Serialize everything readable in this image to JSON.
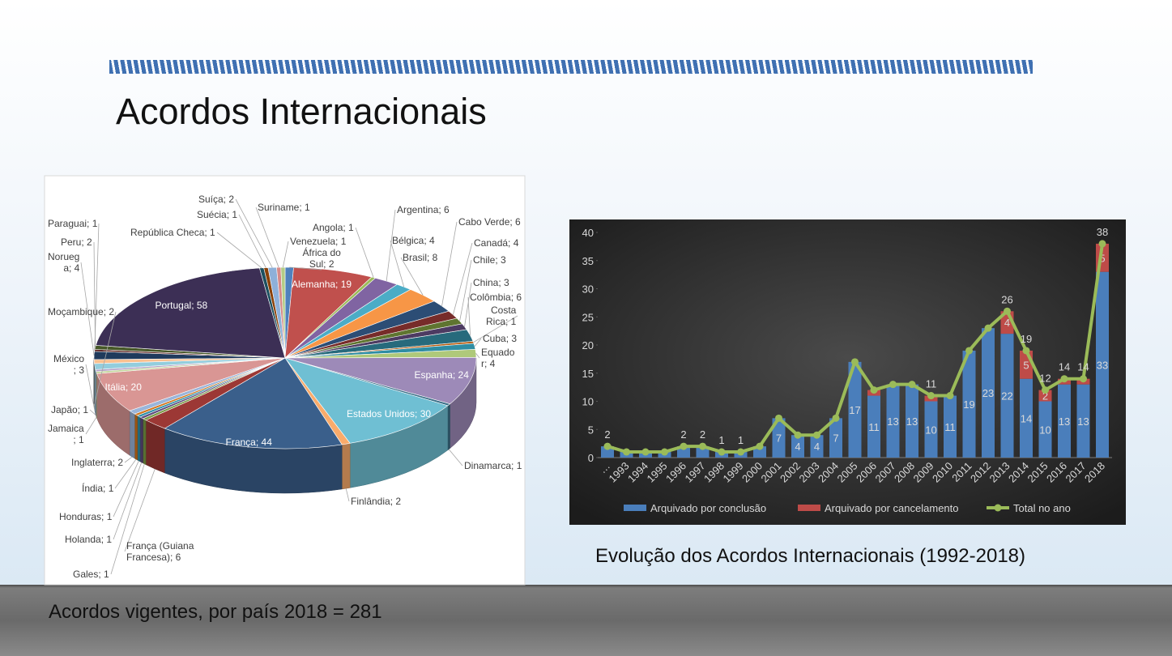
{
  "title": "Acordos Internacionais",
  "chart_data": [
    {
      "type": "pie",
      "caption": "Acordos vigentes, por país 2018 = 281",
      "values": [
        2,
        19,
        1,
        6,
        4,
        8,
        6,
        4,
        3,
        3,
        6,
        1,
        3,
        4,
        24,
        1,
        30,
        2,
        44,
        6,
        1,
        1,
        1,
        1,
        2,
        20,
        1,
        1,
        3,
        2,
        4,
        1,
        2,
        58,
        1,
        1,
        2,
        1,
        1
      ],
      "value_labels": [
        "África do\nSul; 2",
        "Alemanha; 19",
        "Angola; 1",
        "Argentina; 6",
        "Bélgica; 4",
        "Brasil; 8",
        "Cabo Verde; 6",
        "Canadá; 4",
        "Chile; 3",
        "China; 3",
        "Colômbia; 6",
        "Costa\nRica; 1",
        "Cuba; 3",
        "Equado\nr; 4",
        "Espanha; 24",
        "Dinamarca; 1",
        "Estados Unidos; 30",
        "Finlândia; 2",
        "França; 44",
        "França (Guiana\nFrancesa); 6",
        "Gales; 1",
        "Holanda; 1",
        "Honduras; 1",
        "Índia; 1",
        "Inglaterra; 2",
        "Itália; 20",
        "Jamaica\n; 1",
        "Japão; 1",
        "México\n; 3",
        "Moçambique; 2",
        "Norueg\na; 4",
        "Paraguai; 1",
        "Peru; 2",
        "Portugal; 58",
        "República Checa; 1",
        "Suécia; 1",
        "Suíça; 2",
        "Suriname; 1",
        "Venezuela; 1"
      ],
      "colors": [
        "#4f81bd",
        "#c0504d",
        "#9bbb59",
        "#8064a2",
        "#4bacc6",
        "#f79646",
        "#2c4d75",
        "#772c2a",
        "#5f7530",
        "#4d3b62",
        "#276a7c",
        "#b65708",
        "#2f8da3",
        "#afc97a",
        "#9d8ab8",
        "#3a6f88",
        "#6fbfd3",
        "#f9ab6b",
        "#3a5f8b",
        "#9c3835",
        "#7a9a44",
        "#5e4a7d",
        "#3190aa",
        "#d3751a",
        "#9ab5da",
        "#d99694",
        "#c3d69b",
        "#b2a1c7",
        "#93cddd",
        "#fac090",
        "#1f3a5c",
        "#5a2120",
        "#475828",
        "#3c2f55",
        "#1d5060",
        "#8a4108",
        "#8eb0d9",
        "#d68a88",
        "#b4cc86"
      ]
    },
    {
      "type": "bar",
      "stacked": true,
      "caption": "Evolução dos Acordos Internacionais (1992-2018)",
      "categories": [
        "…",
        "1993",
        "1994",
        "1995",
        "1996",
        "1997",
        "1998",
        "1999",
        "2000",
        "2001",
        "2002",
        "2003",
        "2004",
        "2005",
        "2006",
        "2007",
        "2008",
        "2009",
        "2010",
        "2011",
        "2012",
        "2013",
        "2014",
        "2015",
        "2016",
        "2017",
        "2018"
      ],
      "ylim": [
        0,
        40
      ],
      "yticks": [
        0,
        5,
        10,
        15,
        20,
        25,
        30,
        35,
        40
      ],
      "legend": "bottom",
      "series": [
        {
          "name": "Arquivado por conclusão",
          "color": "#4a7ebb",
          "values": [
            2,
            1,
            1,
            1,
            2,
            2,
            1,
            1,
            2,
            7,
            4,
            4,
            7,
            17,
            11,
            13,
            13,
            10,
            11,
            19,
            23,
            22,
            14,
            10,
            13,
            13,
            33
          ],
          "value_labels": [
            null,
            null,
            null,
            null,
            null,
            null,
            null,
            null,
            null,
            "7",
            "4",
            "4",
            "7",
            "17",
            "11",
            "13",
            "13",
            "10",
            "11",
            "19",
            "23",
            "22",
            "14",
            "10",
            "13",
            "13",
            "33"
          ]
        },
        {
          "name": "Arquivado por cancelamento",
          "color": "#be4b48",
          "values": [
            0,
            0,
            0,
            0,
            0,
            0,
            0,
            0,
            0,
            0,
            0,
            0,
            0,
            0,
            1,
            0,
            0,
            1,
            0,
            0,
            0,
            4,
            5,
            2,
            1,
            1,
            5
          ],
          "value_labels": [
            null,
            null,
            null,
            null,
            null,
            null,
            null,
            null,
            null,
            null,
            null,
            null,
            null,
            null,
            null,
            null,
            null,
            null,
            null,
            null,
            null,
            "4",
            "5",
            "2",
            null,
            null,
            "5"
          ]
        },
        {
          "name": "Total no ano",
          "type": "line",
          "color": "#9bbb59",
          "values": [
            2,
            1,
            1,
            1,
            2,
            2,
            1,
            1,
            2,
            7,
            4,
            4,
            7,
            17,
            12,
            13,
            13,
            11,
            11,
            19,
            23,
            26,
            19,
            12,
            14,
            14,
            38
          ],
          "value_labels": [
            "2",
            null,
            null,
            null,
            "2",
            "2",
            "1",
            "1",
            null,
            null,
            null,
            null,
            null,
            null,
            null,
            null,
            null,
            "11",
            null,
            null,
            null,
            "26",
            "19",
            "12",
            "14",
            "14",
            "38"
          ]
        }
      ]
    }
  ]
}
